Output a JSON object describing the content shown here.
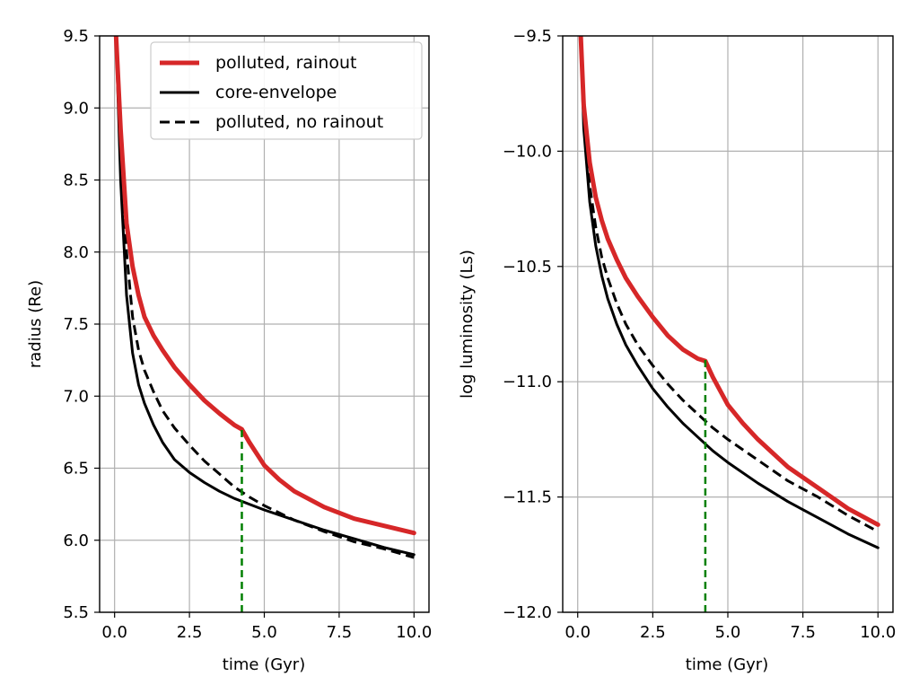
{
  "chart_data": [
    {
      "type": "line",
      "xlabel": "time (Gyr)",
      "ylabel": "radius (Re)",
      "xlim": [
        -0.5,
        10.5
      ],
      "ylim": [
        5.5,
        9.5
      ],
      "xticks": [
        0.0,
        2.5,
        5.0,
        7.5,
        10.0
      ],
      "xtick_labels": [
        "0.0",
        "2.5",
        "5.0",
        "7.5",
        "10.0"
      ],
      "yticks": [
        5.5,
        6.0,
        6.5,
        7.0,
        7.5,
        8.0,
        8.5,
        9.0,
        9.5
      ],
      "ytick_labels": [
        "5.5",
        "6.0",
        "6.5",
        "7.0",
        "7.5",
        "8.0",
        "8.5",
        "9.0",
        "9.5"
      ],
      "grid": true,
      "legend": "top-right",
      "series": [
        {
          "name": "polluted, rainout",
          "color": "#d62728",
          "style": "solid-thick",
          "x": [
            0.05,
            0.2,
            0.4,
            0.6,
            0.8,
            1.0,
            1.3,
            1.6,
            2.0,
            2.5,
            3.0,
            3.5,
            4.0,
            4.25,
            4.5,
            5.0,
            5.5,
            6.0,
            7.0,
            8.0,
            9.0,
            10.0
          ],
          "y": [
            9.5,
            8.85,
            8.2,
            7.9,
            7.7,
            7.55,
            7.42,
            7.32,
            7.2,
            7.08,
            6.97,
            6.88,
            6.8,
            6.77,
            6.68,
            6.52,
            6.42,
            6.34,
            6.23,
            6.15,
            6.1,
            6.05
          ]
        },
        {
          "name": "core-envelope",
          "color": "#000000",
          "style": "solid",
          "x": [
            0.05,
            0.2,
            0.4,
            0.6,
            0.8,
            1.0,
            1.3,
            1.6,
            2.0,
            2.5,
            3.0,
            3.5,
            4.0,
            4.5,
            5.0,
            6.0,
            7.0,
            8.0,
            9.0,
            10.0
          ],
          "y": [
            9.5,
            8.5,
            7.7,
            7.3,
            7.08,
            6.95,
            6.8,
            6.68,
            6.56,
            6.47,
            6.4,
            6.34,
            6.29,
            6.25,
            6.21,
            6.14,
            6.07,
            6.01,
            5.95,
            5.9
          ]
        },
        {
          "name": "polluted, no rainout",
          "color": "#000000",
          "style": "dashed",
          "x": [
            0.05,
            0.2,
            0.4,
            0.6,
            0.8,
            1.0,
            1.3,
            1.6,
            2.0,
            2.5,
            3.0,
            3.5,
            4.0,
            4.5,
            5.0,
            6.0,
            7.0,
            8.0,
            9.0,
            10.0
          ],
          "y": [
            9.5,
            8.7,
            8.0,
            7.55,
            7.32,
            7.18,
            7.03,
            6.9,
            6.78,
            6.66,
            6.55,
            6.46,
            6.37,
            6.3,
            6.24,
            6.14,
            6.06,
            5.99,
            5.94,
            5.88
          ]
        }
      ],
      "annotations": [
        {
          "type": "vertical-dashed-segment",
          "color": "#008000",
          "x": 4.25,
          "y_from": 5.5,
          "y_to": 6.77
        }
      ]
    },
    {
      "type": "line",
      "xlabel": "time (Gyr)",
      "ylabel": "log luminosity (Ls)",
      "xlim": [
        -0.5,
        10.5
      ],
      "ylim": [
        -12.0,
        -9.5
      ],
      "xticks": [
        0.0,
        2.5,
        5.0,
        7.5,
        10.0
      ],
      "xtick_labels": [
        "0.0",
        "2.5",
        "5.0",
        "7.5",
        "10.0"
      ],
      "yticks": [
        -12.0,
        -11.5,
        -11.0,
        -10.5,
        -10.0,
        -9.5
      ],
      "ytick_labels": [
        "−12.0",
        "−11.5",
        "−11.0",
        "−10.5",
        "−10.0",
        "−9.5"
      ],
      "grid": true,
      "series": [
        {
          "name": "polluted, rainout",
          "color": "#d62728",
          "style": "solid-thick",
          "x": [
            0.1,
            0.2,
            0.4,
            0.6,
            0.8,
            1.0,
            1.3,
            1.6,
            2.0,
            2.5,
            3.0,
            3.5,
            4.0,
            4.25,
            4.5,
            5.0,
            5.5,
            6.0,
            7.0,
            8.0,
            9.0,
            10.0
          ],
          "y": [
            -9.5,
            -9.8,
            -10.05,
            -10.2,
            -10.3,
            -10.38,
            -10.47,
            -10.55,
            -10.63,
            -10.72,
            -10.8,
            -10.86,
            -10.9,
            -10.91,
            -10.98,
            -11.1,
            -11.18,
            -11.25,
            -11.37,
            -11.46,
            -11.55,
            -11.62
          ]
        },
        {
          "name": "core-envelope",
          "color": "#000000",
          "style": "solid",
          "x": [
            0.1,
            0.2,
            0.4,
            0.6,
            0.8,
            1.0,
            1.3,
            1.6,
            2.0,
            2.5,
            3.0,
            3.5,
            4.0,
            4.5,
            5.0,
            6.0,
            7.0,
            8.0,
            9.0,
            10.0
          ],
          "y": [
            -9.5,
            -9.9,
            -10.22,
            -10.41,
            -10.54,
            -10.64,
            -10.75,
            -10.84,
            -10.93,
            -11.03,
            -11.11,
            -11.18,
            -11.24,
            -11.3,
            -11.35,
            -11.44,
            -11.52,
            -11.59,
            -11.66,
            -11.72
          ]
        },
        {
          "name": "polluted, no rainout",
          "color": "#000000",
          "style": "dashed",
          "x": [
            0.1,
            0.2,
            0.4,
            0.6,
            0.8,
            1.0,
            1.3,
            1.6,
            2.0,
            2.5,
            3.0,
            3.5,
            4.0,
            4.5,
            5.0,
            6.0,
            7.0,
            8.0,
            9.0,
            10.0
          ],
          "y": [
            -9.5,
            -9.85,
            -10.15,
            -10.33,
            -10.46,
            -10.55,
            -10.66,
            -10.75,
            -10.84,
            -10.93,
            -11.01,
            -11.08,
            -11.14,
            -11.2,
            -11.25,
            -11.34,
            -11.43,
            -11.5,
            -11.58,
            -11.65
          ]
        }
      ],
      "annotations": [
        {
          "type": "vertical-dashed-segment",
          "color": "#008000",
          "x": 4.25,
          "y_from": -12.0,
          "y_to": -10.9
        }
      ]
    }
  ]
}
